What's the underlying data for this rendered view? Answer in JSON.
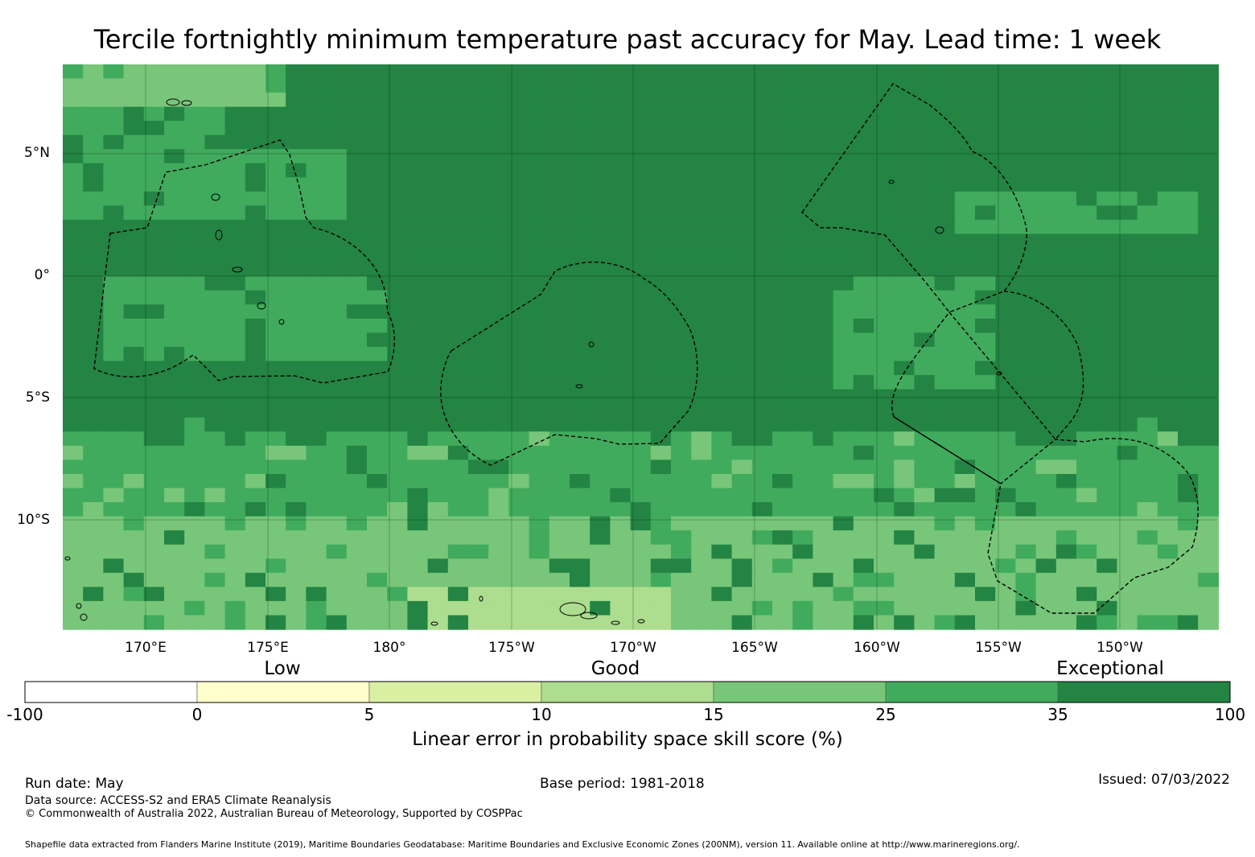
{
  "title": "Tercile fortnightly minimum temperature past accuracy for May. Lead time: 1 week",
  "map": {
    "lat_labels": [
      "5°N",
      "0°",
      "5°S",
      "10°S"
    ],
    "lon_labels": [
      "170°E",
      "175°E",
      "180°",
      "175°W",
      "170°W",
      "165°W",
      "160°W",
      "155°W",
      "150°W"
    ],
    "colors": {
      "neg": "#ffffff",
      "c0_5": "#ffffcc",
      "c5_10": "#d9f0a3",
      "c10_15": "#addd8e",
      "c15_25": "#78c679",
      "c25_35": "#41ab5d",
      "c35_100": "#238443",
      "boundary": "#000000"
    }
  },
  "colorbar": {
    "categories": [
      "Low",
      "Good",
      "Exceptional"
    ],
    "ticks": [
      "-100",
      "0",
      "5",
      "10",
      "15",
      "25",
      "35",
      "100"
    ],
    "bin_colors": [
      "#ffffff",
      "#ffffcc",
      "#d9f0a3",
      "#addd8e",
      "#78c679",
      "#41ab5d",
      "#238443"
    ],
    "label": "Linear error in probability space skill score (%)"
  },
  "footer": {
    "run_date": "Run date: May",
    "base_period": "Base period: 1981-2018",
    "issued": "Issued: 07/03/2022",
    "data_source": "Data source: ACCESS-S2 and ERA5 Climate Reanalysis",
    "copyright": "© Commonwealth of Australia 2022, Australian Bureau of Meteorology, Supported by COSPPac",
    "shapefile": "Shapefile data extracted from Flanders Marine Institute (2019), Maritime Boundaries Geodatabase: Maritime Boundaries and Exclusive Economic Zones (200NM), version 11. Available online at http://www.marineregions.org/."
  }
}
